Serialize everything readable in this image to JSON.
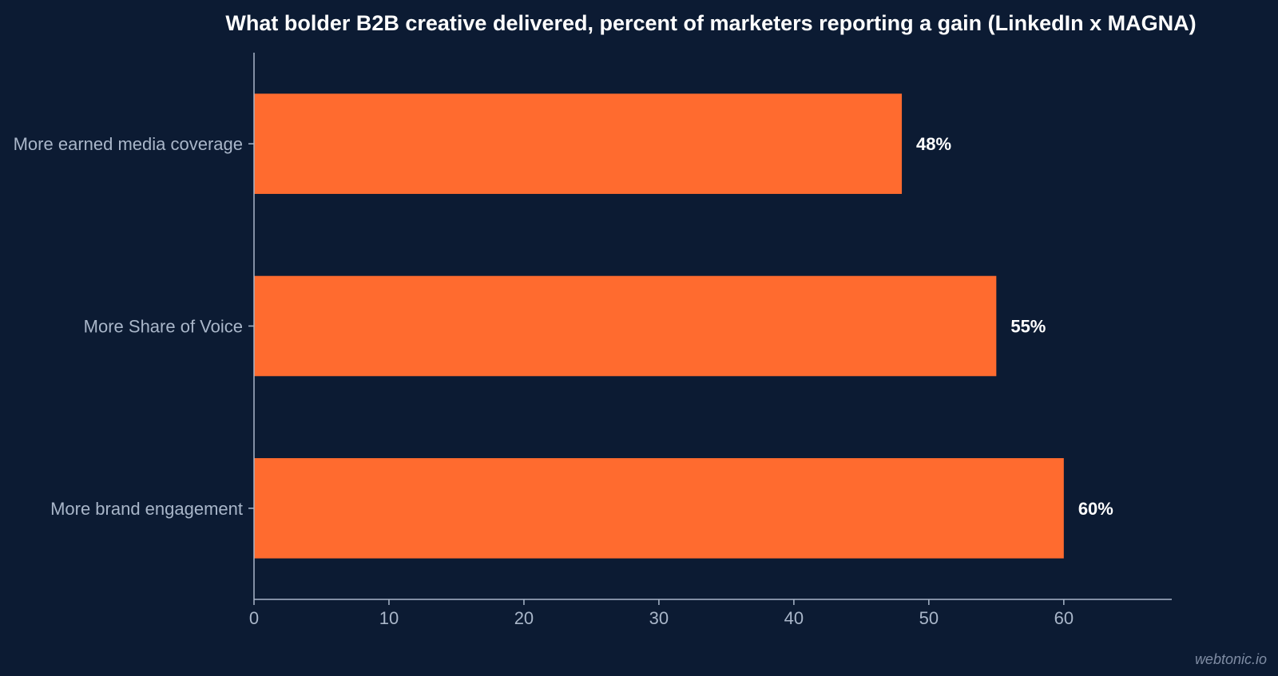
{
  "chart_data": {
    "type": "bar",
    "orientation": "horizontal",
    "title": "What bolder B2B creative delivered, percent of marketers reporting a gain (LinkedIn x MAGNA)",
    "categories": [
      "More earned media coverage",
      "More Share of Voice",
      "More brand engagement"
    ],
    "values": [
      48,
      55,
      60
    ],
    "value_labels": [
      "48%",
      "55%",
      "60%"
    ],
    "xticks": [
      0,
      10,
      20,
      30,
      40,
      50,
      60
    ],
    "xlim": [
      0,
      68
    ],
    "xlabel": "",
    "ylabel": "",
    "grid": false,
    "colors": {
      "background": "#0c1b33",
      "bar": "#ff6b2f",
      "axis": "#a9b6c9",
      "label": "#a9b6c9",
      "value_label": "#ffffff",
      "title": "#ffffff"
    }
  },
  "watermark": "webtonic.io"
}
